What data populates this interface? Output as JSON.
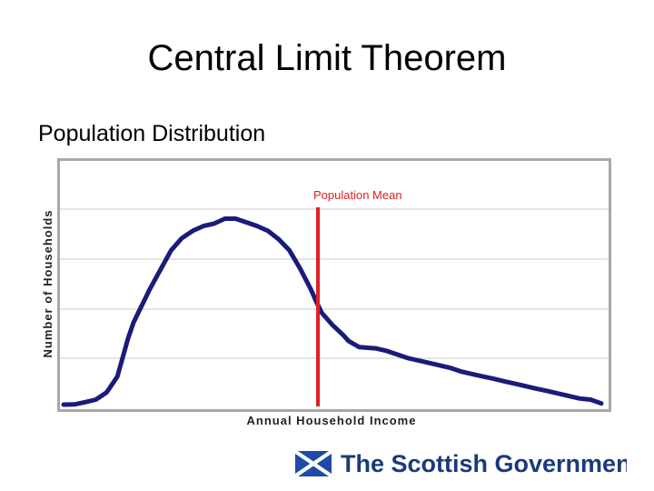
{
  "slide": {
    "title": "Central Limit Theorem",
    "subtitle": "Population Distribution"
  },
  "logo": {
    "text": "The Scottish Government",
    "colors": {
      "text": "#1a3a7a",
      "flag_blue": "#1f4aa8",
      "flag_white": "#ffffff"
    }
  },
  "chart_data": {
    "type": "line",
    "title": "",
    "xlabel": "Annual Household Income",
    "ylabel": "Number of Households",
    "xlim": [
      0,
      100
    ],
    "ylim": [
      0,
      100
    ],
    "grid": true,
    "ticks_labeled": false,
    "series": [
      {
        "color": "#1b1b7a",
        "x": [
          0,
          2,
          4,
          6,
          8,
          10,
          12,
          13,
          14,
          15,
          16,
          18,
          20,
          22,
          24,
          26,
          28,
          30,
          32,
          34,
          36,
          38,
          40,
          42,
          44,
          46,
          47,
          48,
          50,
          52,
          53,
          55,
          58,
          60,
          62,
          64,
          66,
          68,
          70,
          72,
          74,
          76,
          78,
          80,
          82,
          84,
          86,
          88,
          90,
          92,
          94,
          96,
          98,
          100
        ],
        "y": [
          0,
          0.1,
          1.3,
          2.6,
          6.4,
          14.7,
          34.7,
          43,
          48.8,
          54.5,
          60.3,
          70.6,
          80.8,
          87.2,
          91,
          93.5,
          94.8,
          97.4,
          97.4,
          95.5,
          93.5,
          91,
          86.6,
          80.8,
          71.2,
          60.3,
          53.9,
          48.1,
          41.7,
          36.5,
          33.3,
          30.1,
          29.5,
          28.2,
          26.3,
          24.4,
          23.1,
          21.8,
          20.5,
          19.2,
          17.3,
          16,
          14.7,
          13.5,
          12.2,
          10.9,
          9.6,
          8.3,
          7.1,
          5.8,
          4.5,
          3.2,
          2.6,
          0.6
        ]
      }
    ],
    "annotations": [
      {
        "label": "Population Mean",
        "x": 47.3,
        "color": "#e02020"
      }
    ]
  }
}
